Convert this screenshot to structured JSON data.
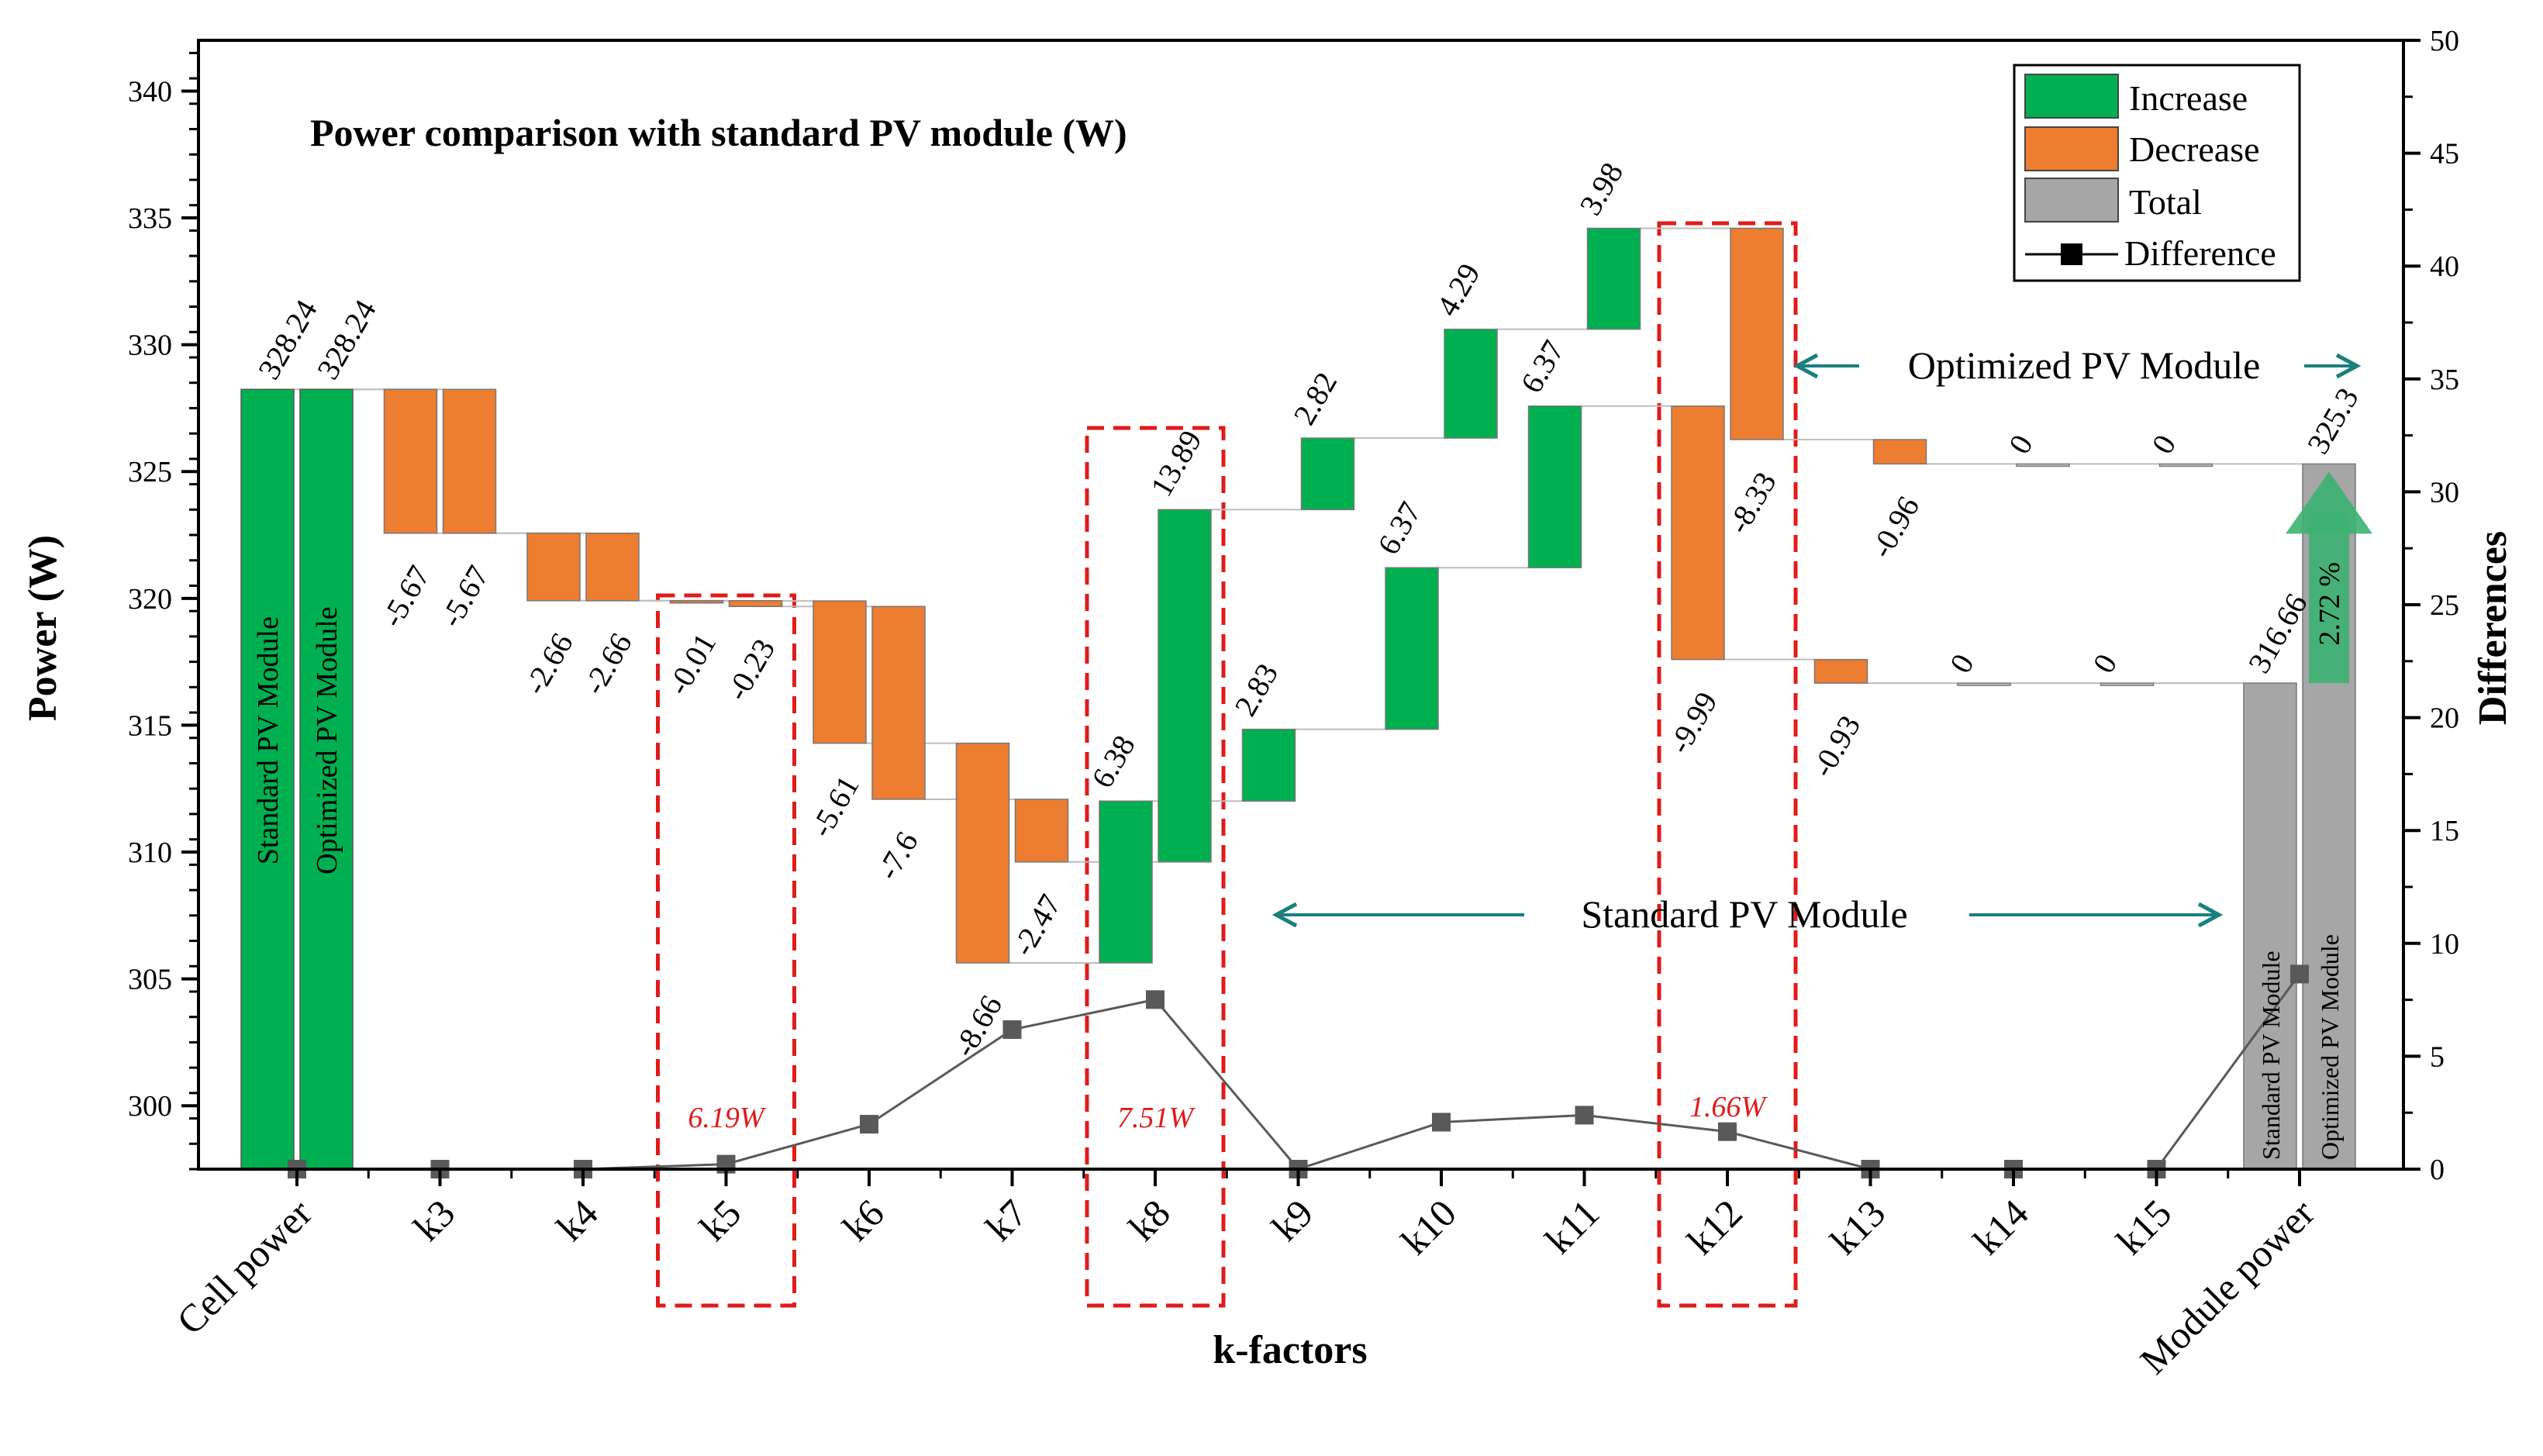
{
  "chart_data": {
    "type": "bar",
    "subtype": "waterfall",
    "title": "Power comparison with standard PV module (W)",
    "xlabel": "k-factors",
    "ylabel": "Power (W)",
    "y2label": "Differences",
    "ylim": [
      297.5,
      342
    ],
    "y2lim": [
      0,
      50
    ],
    "yticks": [
      300,
      305,
      310,
      315,
      320,
      325,
      330,
      335,
      340
    ],
    "y2ticks": [
      0,
      5,
      10,
      15,
      20,
      25,
      30,
      35,
      40,
      45,
      50
    ],
    "categories": [
      "Cell power",
      "k3",
      "k4",
      "k5",
      "k6",
      "k7",
      "k8",
      "k9",
      "k10",
      "k11",
      "k12",
      "k13",
      "k14",
      "k15",
      "Module power"
    ],
    "colors": {
      "increase": "#00b050",
      "decrease": "#ed7d31",
      "total": "#a6a6a6",
      "difference": "#595959",
      "annotation": "#e01b1b",
      "region_arrow": "#1a7f7f"
    },
    "legend": {
      "position": "top-right",
      "items": [
        "Increase",
        "Decrease",
        "Total",
        "Difference"
      ]
    },
    "series": [
      {
        "name": "Standard PV Module",
        "start_value": 328.24,
        "start_label": "328.24",
        "start_bar_text": "Standard PV Module",
        "steps": [
          {
            "category": "k3",
            "value": -5.67,
            "label": "-5.67"
          },
          {
            "category": "k4",
            "value": -2.66,
            "label": "-2.66"
          },
          {
            "category": "k5",
            "value": -0.01,
            "label": "-0.01"
          },
          {
            "category": "k6",
            "value": -5.61,
            "label": "-5.61"
          },
          {
            "category": "k7",
            "value": -8.66,
            "label": "-8.66"
          },
          {
            "category": "k8",
            "value": 6.38,
            "label": "6.38"
          },
          {
            "category": "k9",
            "value": 2.83,
            "label": "2.83"
          },
          {
            "category": "k10",
            "value": 6.37,
            "label": "6.37"
          },
          {
            "category": "k11",
            "value": 6.37,
            "label": "6.37"
          },
          {
            "category": "k12",
            "value": -9.99,
            "label": "-9.99"
          },
          {
            "category": "k13",
            "value": -0.93,
            "label": "-0.93"
          },
          {
            "category": "k14",
            "value": 0,
            "label": "0"
          },
          {
            "category": "k15",
            "value": 0,
            "label": "0"
          }
        ],
        "total_value": 316.66,
        "total_label": "316.66",
        "total_bar_text": "Standard PV Module"
      },
      {
        "name": "Optimized PV Module",
        "start_value": 328.24,
        "start_label": "328.24",
        "start_bar_text": "Optimized PV Module",
        "steps": [
          {
            "category": "k3",
            "value": -5.67,
            "label": "-5.67"
          },
          {
            "category": "k4",
            "value": -2.66,
            "label": "-2.66"
          },
          {
            "category": "k5",
            "value": -0.23,
            "label": "-0.23"
          },
          {
            "category": "k6",
            "value": -7.6,
            "label": "-7.6"
          },
          {
            "category": "k7",
            "value": -2.47,
            "label": "-2.47"
          },
          {
            "category": "k8",
            "value": 13.89,
            "label": "13.89"
          },
          {
            "category": "k9",
            "value": 2.82,
            "label": "2.82"
          },
          {
            "category": "k10",
            "value": 4.29,
            "label": "4.29"
          },
          {
            "category": "k11",
            "value": 3.98,
            "label": "3.98"
          },
          {
            "category": "k12",
            "value": -8.33,
            "label": "-8.33"
          },
          {
            "category": "k13",
            "value": -0.96,
            "label": "-0.96"
          },
          {
            "category": "k14",
            "value": 0,
            "label": "0"
          },
          {
            "category": "k15",
            "value": 0,
            "label": "0"
          }
        ],
        "total_value": 325.3,
        "total_label": "325.3",
        "total_bar_text": "Optimized PV Module"
      }
    ],
    "difference": {
      "name": "Difference",
      "values": [
        0,
        0,
        0,
        0.22,
        1.99,
        6.18,
        7.51,
        0,
        2.08,
        2.39,
        1.66,
        0,
        0,
        0,
        8.64
      ]
    },
    "highlight_boxes": [
      {
        "category": "k5",
        "label": "6.19W"
      },
      {
        "category": "k8",
        "label": "7.51W"
      },
      {
        "category": "k12",
        "label": "1.66W"
      }
    ],
    "region_labels": {
      "optimized": "Optimized PV Module",
      "standard": "Standard PV Module"
    },
    "gain_label": "2.72 %"
  }
}
